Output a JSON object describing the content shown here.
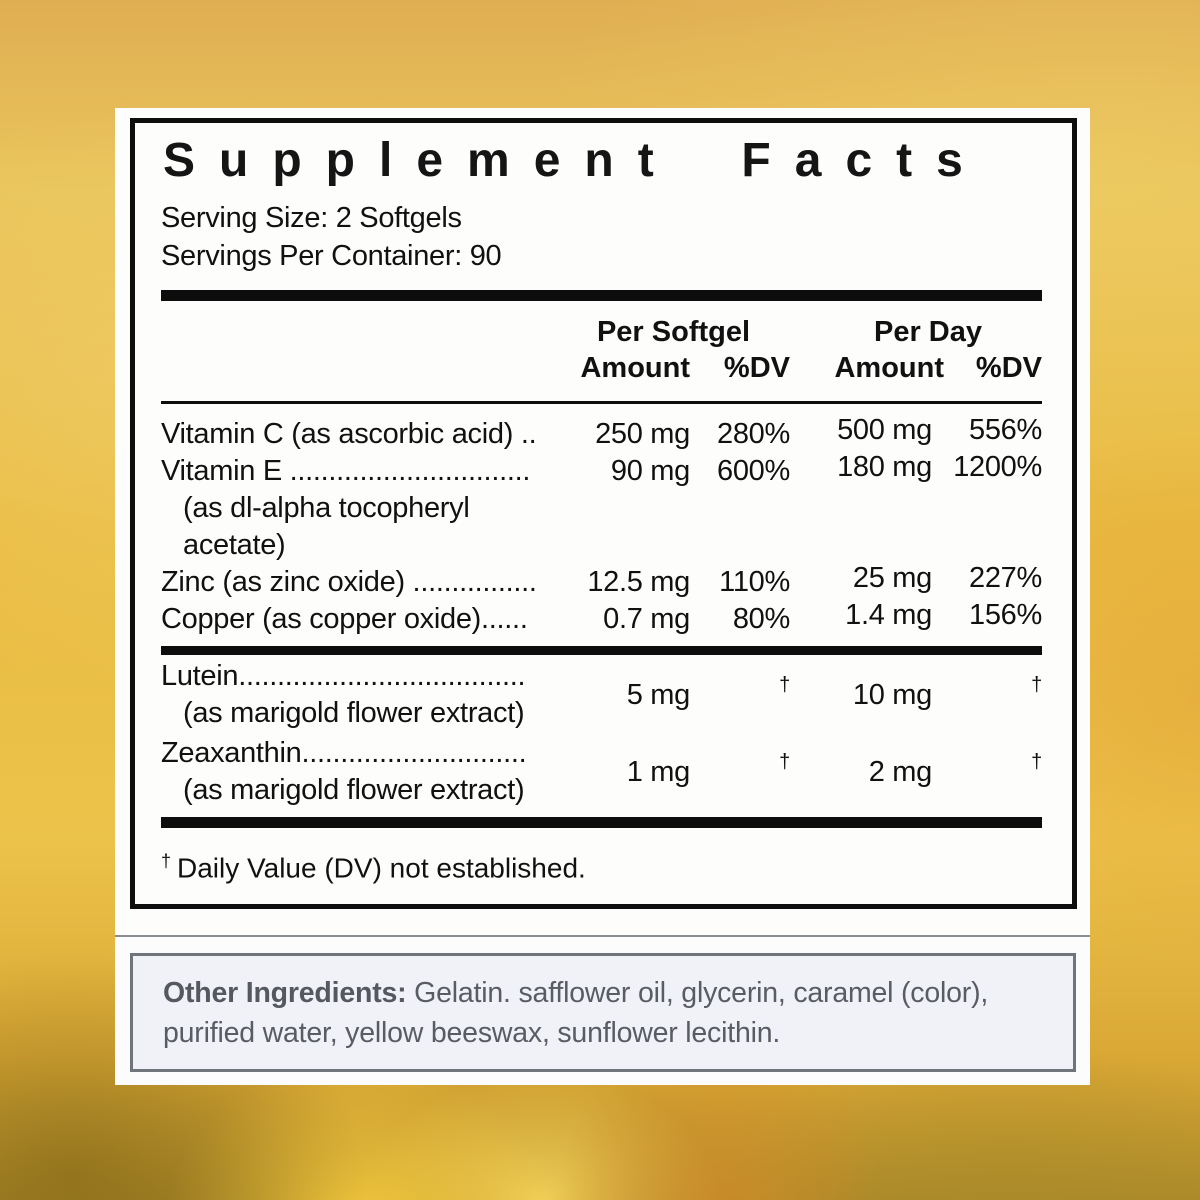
{
  "colors": {
    "background_gold": "#e8bb4e",
    "panel_white": "#fdfdfc",
    "facts_border_black": "#0e0e0e",
    "other_box_border_gray": "#70757c",
    "other_box_bg": "#f0f2f7",
    "other_text_gray": "#585c63"
  },
  "facts": {
    "title": "Supplement Facts",
    "serving_size": "Serving Size: 2 Softgels",
    "servings_per_container": "Servings Per Container: 90",
    "columns": {
      "per_softgel": "Per Softgel",
      "per_day": "Per Day",
      "amount": "Amount",
      "dv": "%DV"
    },
    "rows": [
      {
        "label": "Vitamin C (as ascorbic acid) ..",
        "sub": "",
        "ps_amount": "250 mg",
        "ps_dv": "280%",
        "pd_amount": "500 mg",
        "pd_dv": "556%"
      },
      {
        "label": "Vitamin E ...............................",
        "sub": "(as dl-alpha tocopheryl acetate)",
        "ps_amount": "90 mg",
        "ps_dv": "600%",
        "pd_amount": "180 mg",
        "pd_dv": "1200%"
      },
      {
        "label": "Zinc (as zinc oxide) ................",
        "sub": "",
        "ps_amount": "12.5 mg",
        "ps_dv": "110%",
        "pd_amount": "25 mg",
        "pd_dv": "227%"
      },
      {
        "label": "Copper (as copper oxide)......",
        "sub": "",
        "ps_amount": "0.7 mg",
        "ps_dv": "80%",
        "pd_amount": "1.4 mg",
        "pd_dv": "156%"
      }
    ],
    "rows2": [
      {
        "label": "Lutein.....................................",
        "sub": "(as marigold flower extract)",
        "ps_amount": "5 mg",
        "ps_dv": "†",
        "pd_amount": "10 mg",
        "pd_dv": "†"
      },
      {
        "label": "Zeaxanthin.............................",
        "sub": "(as marigold flower extract)",
        "ps_amount": "1 mg",
        "ps_dv": "†",
        "pd_amount": "2 mg",
        "pd_dv": "†"
      }
    ],
    "footnote_symbol": "†",
    "footnote": "Daily Value (DV) not established."
  },
  "other_ingredients": {
    "label": "Other Ingredients:",
    "text": " Gelatin. safflower oil, glycerin, caramel (color), purified water, yellow beeswax, sunflower lecithin."
  }
}
